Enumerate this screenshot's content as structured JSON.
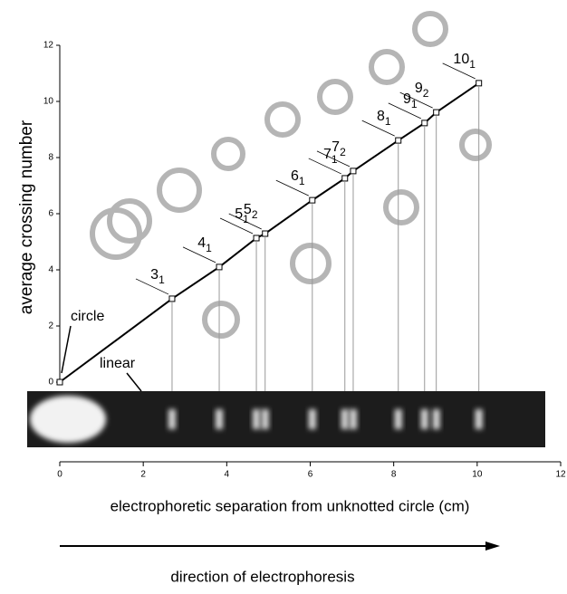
{
  "chart_data": {
    "type": "line",
    "ylabel": "average crossing number",
    "xlabel": "electrophoretic separation from unknotted circle (cm)",
    "annotations": [
      "circle",
      "linear",
      "direction of electrophoresis"
    ],
    "x": [
      0,
      2.69,
      3.82,
      4.71,
      4.92,
      6.05,
      6.83,
      7.03,
      8.11,
      8.74,
      9.02,
      10.04
    ],
    "series": [
      {
        "color": "#000000",
        "values": [
          0,
          2.97,
          4.1,
          5.13,
          5.29,
          6.48,
          7.26,
          7.52,
          8.61,
          9.23,
          9.61,
          10.65
        ],
        "point_labels": [
          null,
          [
            "3",
            "1"
          ],
          [
            "4",
            "1"
          ],
          [
            "5",
            "1"
          ],
          [
            "5",
            "2"
          ],
          [
            "6",
            "1"
          ],
          [
            "7",
            "1"
          ],
          [
            "7",
            "2"
          ],
          [
            "8",
            "1"
          ],
          [
            "9",
            "1"
          ],
          [
            "9",
            "2"
          ],
          [
            "10",
            "1"
          ]
        ]
      }
    ],
    "xlim": [
      0,
      12
    ],
    "xticks": [
      0,
      2,
      4,
      6,
      8,
      10,
      12
    ],
    "ylim": [
      0,
      12
    ],
    "yticks": [
      0,
      2,
      4,
      6,
      8,
      10,
      12
    ]
  }
}
